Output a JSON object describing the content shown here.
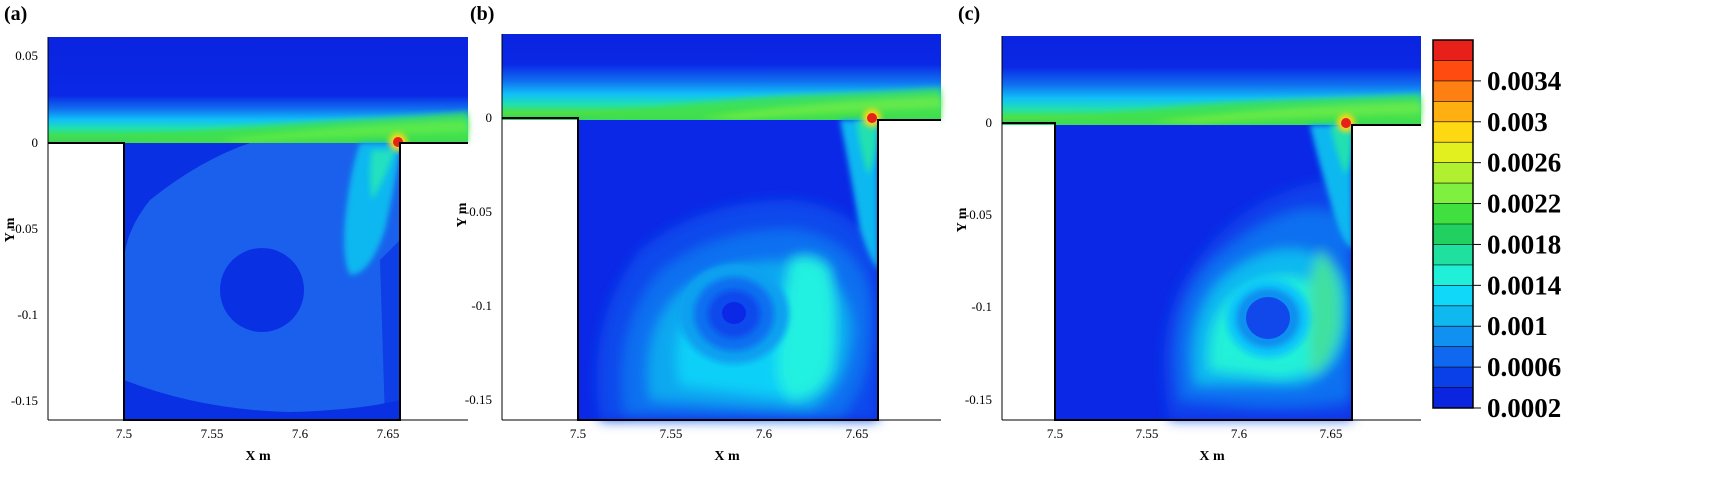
{
  "chart_data": [
    {
      "type": "contour",
      "panel_label": "(a)",
      "xlabel": "X m",
      "ylabel": "Y m",
      "x_ticks": [
        "7.5",
        "7.55",
        "7.6",
        "7.65"
      ],
      "y_ticks": [
        "0.05",
        "0",
        "-0.05",
        "-0.1",
        "-0.15"
      ],
      "xlim": [
        7.46,
        7.695
      ],
      "ylim": [
        -0.162,
        0.06
      ],
      "cavity_x": [
        7.5,
        7.658
      ]
    },
    {
      "type": "contour",
      "panel_label": "(b)",
      "xlabel": "X m",
      "ylabel": "Y m",
      "x_ticks": [
        "7.5",
        "7.55",
        "7.6",
        "7.65"
      ],
      "y_ticks": [
        "0",
        "-0.05",
        "-0.1",
        "-0.15"
      ],
      "xlim": [
        7.465,
        7.695
      ],
      "ylim": [
        -0.162,
        0.045
      ],
      "cavity_x": [
        7.5,
        7.66
      ]
    },
    {
      "type": "contour",
      "panel_label": "(c)",
      "xlabel": "X m",
      "ylabel": "Y m",
      "x_ticks": [
        "7.5",
        "7.55",
        "7.6",
        "7.65"
      ],
      "y_ticks": [
        "0",
        "-0.05",
        "-0.1",
        "-0.15"
      ],
      "xlim": [
        7.465,
        7.695
      ],
      "ylim": [
        -0.162,
        0.045
      ],
      "cavity_x": [
        7.5,
        7.66
      ]
    }
  ],
  "colorbar": {
    "tick_labels": [
      "0.0034",
      "0.003",
      "0.0026",
      "0.0022",
      "0.0018",
      "0.0014",
      "0.001",
      "0.0006",
      "0.0002"
    ],
    "colors": [
      "#e8201a",
      "#ff4a10",
      "#ff8012",
      "#ffb010",
      "#ffd814",
      "#e2f020",
      "#b0f030",
      "#80f040",
      "#40e040",
      "#20d060",
      "#20e0a0",
      "#20f0d8",
      "#10d8f8",
      "#10b8f0",
      "#1090f0",
      "#1068f0",
      "#0a40e8",
      "#0a24e0"
    ]
  }
}
